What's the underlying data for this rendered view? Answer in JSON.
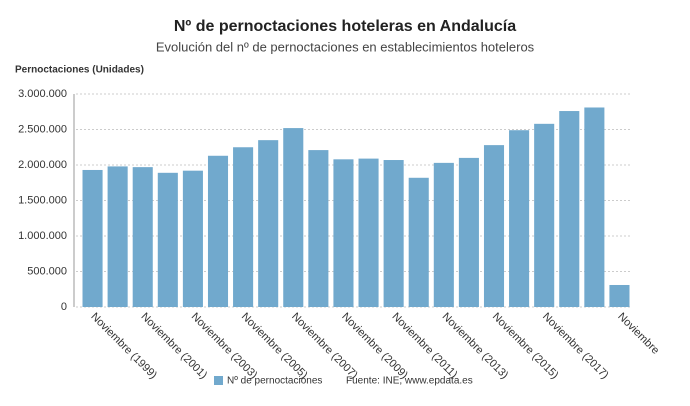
{
  "chart_data": {
    "type": "bar",
    "title": "Nº de pernoctaciones hoteleras en Andalucía",
    "subtitle": "Evolución del nº de pernoctaciones en establecimientos hoteleros",
    "y_label": "Pernoctaciones (Unidades)",
    "source": "Fuente: INE, www.epdata.es",
    "categories": [
      "Noviembre (1999)",
      null,
      "Noviembre (2001)",
      null,
      "Noviembre (2003)",
      null,
      "Noviembre (2005)",
      null,
      "Noviembre (2007)",
      null,
      "Noviembre (2009)",
      null,
      "Noviembre (2011)",
      null,
      "Noviembre (2013)",
      null,
      "Noviembre (2015)",
      null,
      "Noviembre (2017)",
      null,
      null,
      "Noviembre"
    ],
    "series": [
      {
        "name": "Nº de pernoctaciones",
        "color": "#71a9cd",
        "values": [
          1930000,
          1980000,
          1970000,
          1890000,
          1920000,
          2130000,
          2250000,
          2350000,
          2520000,
          2210000,
          2080000,
          2090000,
          2070000,
          1820000,
          2030000,
          2100000,
          2280000,
          2490000,
          2580000,
          2760000,
          2810000,
          310000
        ]
      }
    ],
    "ylim": [
      0,
      3000000
    ],
    "yticks": [
      0,
      {
        "value": 500000,
        "label": "500.000"
      },
      {
        "value": 1000000,
        "label": "1.000.000"
      },
      {
        "value": 1500000,
        "label": "1.500.000"
      },
      {
        "value": 2000000,
        "label": "2.000.000"
      },
      {
        "value": 2500000,
        "label": "2.500.000"
      },
      {
        "value": 3000000,
        "label": "3.000.000"
      }
    ],
    "grid": true
  }
}
